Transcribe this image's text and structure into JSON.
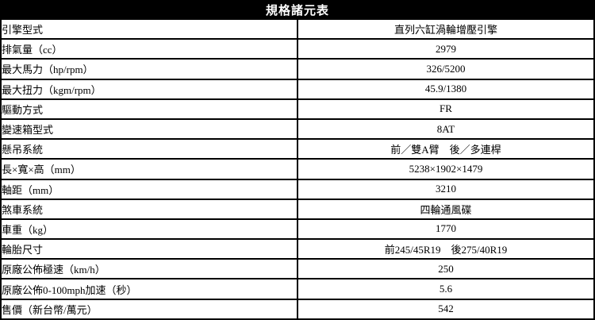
{
  "table": {
    "title": "規格諸元表",
    "colors": {
      "border": "#000000",
      "header_bg": "#000000",
      "header_text": "#ffffff",
      "row_bg": "#ffffff",
      "row_text": "#000000"
    },
    "rows": [
      {
        "label": "引擎型式",
        "value": "直列六缸渦輪增壓引擎"
      },
      {
        "label": "排氣量（cc）",
        "value": "2979"
      },
      {
        "label": "最大馬力（hp/rpm）",
        "value": "326/5200"
      },
      {
        "label": "最大扭力（kgm/rpm）",
        "value": "45.9/1380"
      },
      {
        "label": "驅動方式",
        "value": "FR"
      },
      {
        "label": "變速箱型式",
        "value": "8AT"
      },
      {
        "label": "懸吊系統",
        "value": "前／雙A臂　後／多連桿"
      },
      {
        "label": "長×寬×高（mm）",
        "value": "5238×1902×1479"
      },
      {
        "label": "軸距（mm）",
        "value": "3210"
      },
      {
        "label": "煞車系統",
        "value": "四輪通風碟"
      },
      {
        "label": "車重（kg）",
        "value": "1770"
      },
      {
        "label": "輪胎尺寸",
        "value": "前245/45R19　後275/40R19"
      },
      {
        "label": "原廠公佈極速（km/h）",
        "value": "250"
      },
      {
        "label": "原廠公佈0-100mph加速（秒）",
        "value": "5.6"
      },
      {
        "label": "售價（新台幣/萬元）",
        "value": "542"
      }
    ]
  }
}
